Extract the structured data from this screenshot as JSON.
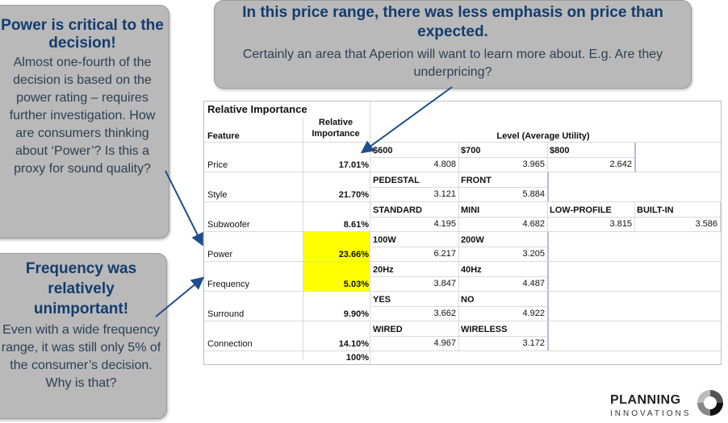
{
  "callouts": {
    "power": {
      "heading": "Power is critical to the decision!",
      "body": "Almost one-fourth of the decision is based on the power rating – requires further investigation. How are consumers thinking about ‘Power’? Is this a proxy for sound quality?"
    },
    "frequency": {
      "heading": "Frequency was relatively unimportant!",
      "body": "Even with a wide frequency range, it was still only 5% of the consumer’s decision. Why is that?"
    },
    "price": {
      "heading": "In this price range, there was less emphasis on price than expected.",
      "body": "Certainly an area that Aperion will want to learn more about. E.g. Are they underpricing?"
    }
  },
  "table": {
    "title": "Relative Importance",
    "col_feature": "Feature",
    "col_importance_1": "Relative",
    "col_importance_2": "Importance",
    "col_level": "Level (Average Utility)",
    "total": "100%",
    "rows": [
      {
        "feature": "Price",
        "importance": "17.01%",
        "highlight": false,
        "levels": [
          {
            "label": "$600",
            "value": "4.808"
          },
          {
            "label": "$700",
            "value": "3.965"
          },
          {
            "label": "$800",
            "value": "2.642"
          }
        ]
      },
      {
        "feature": "Style",
        "importance": "21.70%",
        "highlight": false,
        "levels": [
          {
            "label": "PEDESTAL",
            "value": "3.121"
          },
          {
            "label": "FRONT",
            "value": "5.884"
          }
        ]
      },
      {
        "feature": "Subwoofer",
        "importance": "8.61%",
        "highlight": false,
        "levels": [
          {
            "label": "STANDARD",
            "value": "4.195"
          },
          {
            "label": "MINI",
            "value": "4.682"
          },
          {
            "label": "LOW-PROFILE",
            "value": "3.815"
          },
          {
            "label": "BUILT-IN",
            "value": "3.586"
          }
        ]
      },
      {
        "feature": "Power",
        "importance": "23.66%",
        "highlight": true,
        "levels": [
          {
            "label": "100W",
            "value": "6.217"
          },
          {
            "label": "200W",
            "value": "3.205"
          }
        ]
      },
      {
        "feature": "Frequency",
        "importance": "5.03%",
        "highlight": true,
        "levels": [
          {
            "label": "20Hz",
            "value": "3.847"
          },
          {
            "label": "40Hz",
            "value": "4.487"
          }
        ]
      },
      {
        "feature": "Surround",
        "importance": "9.90%",
        "highlight": false,
        "levels": [
          {
            "label": "YES",
            "value": "3.662"
          },
          {
            "label": "NO",
            "value": "4.922"
          }
        ]
      },
      {
        "feature": "Connection",
        "importance": "14.10%",
        "highlight": false,
        "levels": [
          {
            "label": "WIRED",
            "value": "4.967"
          },
          {
            "label": "WIRELESS",
            "value": "3.172"
          }
        ]
      }
    ]
  },
  "logo": {
    "line1": "PLANNING",
    "line2": "INNOVATIONS"
  },
  "colors": {
    "callout_bg": "#b9b9b9",
    "heading": "#123c6e",
    "highlight": "#ffff00"
  }
}
